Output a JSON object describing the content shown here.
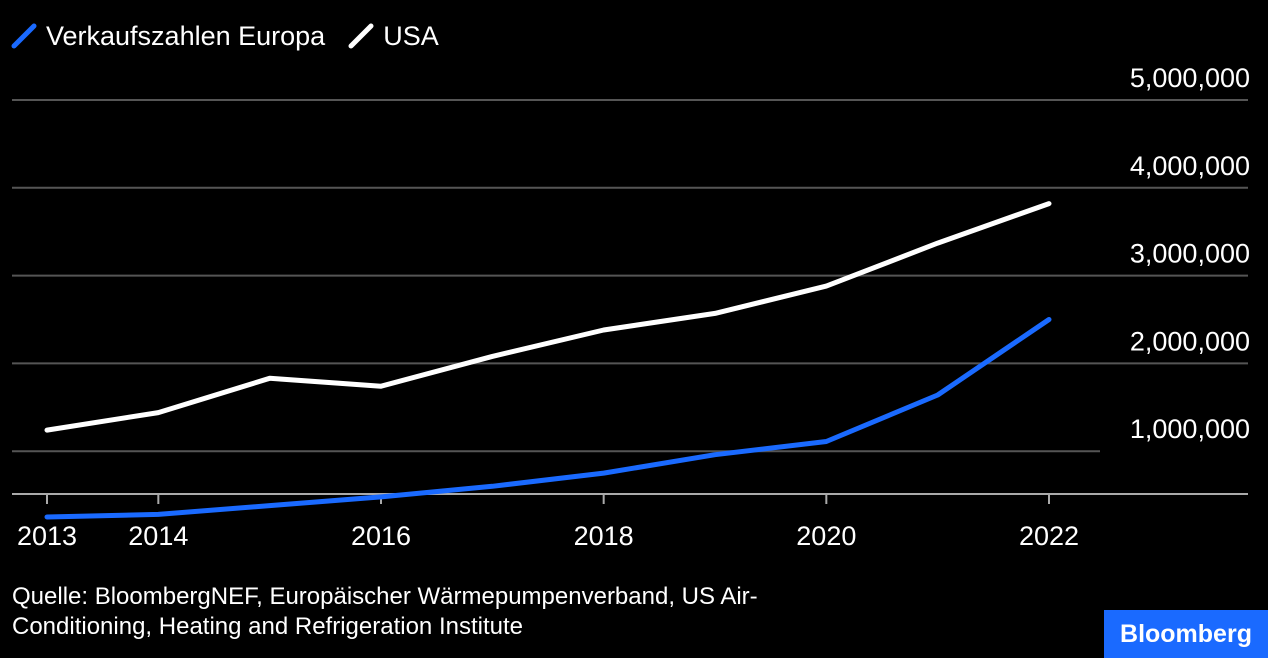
{
  "chart_data": {
    "type": "line",
    "x": [
      2013,
      2014,
      2015,
      2016,
      2017,
      2018,
      2019,
      2020,
      2021,
      2022
    ],
    "series": [
      {
        "name": "Verkaufszahlen Europa",
        "color": "#1a6aff",
        "values": [
          250000,
          280000,
          380000,
          480000,
          600000,
          750000,
          960000,
          1110000,
          1640000,
          2500000
        ]
      },
      {
        "name": "USA",
        "color": "#ffffff",
        "values": [
          1240000,
          1440000,
          1830000,
          1740000,
          2080000,
          2380000,
          2570000,
          2880000,
          3370000,
          3820000
        ]
      }
    ],
    "x_ticks": [
      "2013",
      "2014",
      "2016",
      "2018",
      "2020",
      "2022"
    ],
    "y_ticks": [
      {
        "value": 1000000,
        "label": "1,000,000"
      },
      {
        "value": 2000000,
        "label": "2,000,000"
      },
      {
        "value": 3000000,
        "label": "3,000,000"
      },
      {
        "value": 4000000,
        "label": "4,000,000"
      },
      {
        "value": 5000000,
        "label": "5,000,000"
      }
    ],
    "ylim": [
      0,
      5000000
    ],
    "y_axis_position": "right",
    "grid": true,
    "legend": "top-left"
  },
  "legend": {
    "items": [
      {
        "label": "Verkaufszahlen Europa",
        "color": "#1a6aff"
      },
      {
        "label": "USA",
        "color": "#ffffff"
      }
    ]
  },
  "source_text": "Quelle: BloombergNEF, Europäischer Wärmepumpenverband, US Air-Conditioning, Heating and Refrigeration Institute",
  "brand": {
    "label": "Bloomberg",
    "background": "#1a6aff"
  },
  "colors": {
    "background": "#000000",
    "gridline": "#555555",
    "axis": "#aaaaaa",
    "text": "#ffffff"
  }
}
